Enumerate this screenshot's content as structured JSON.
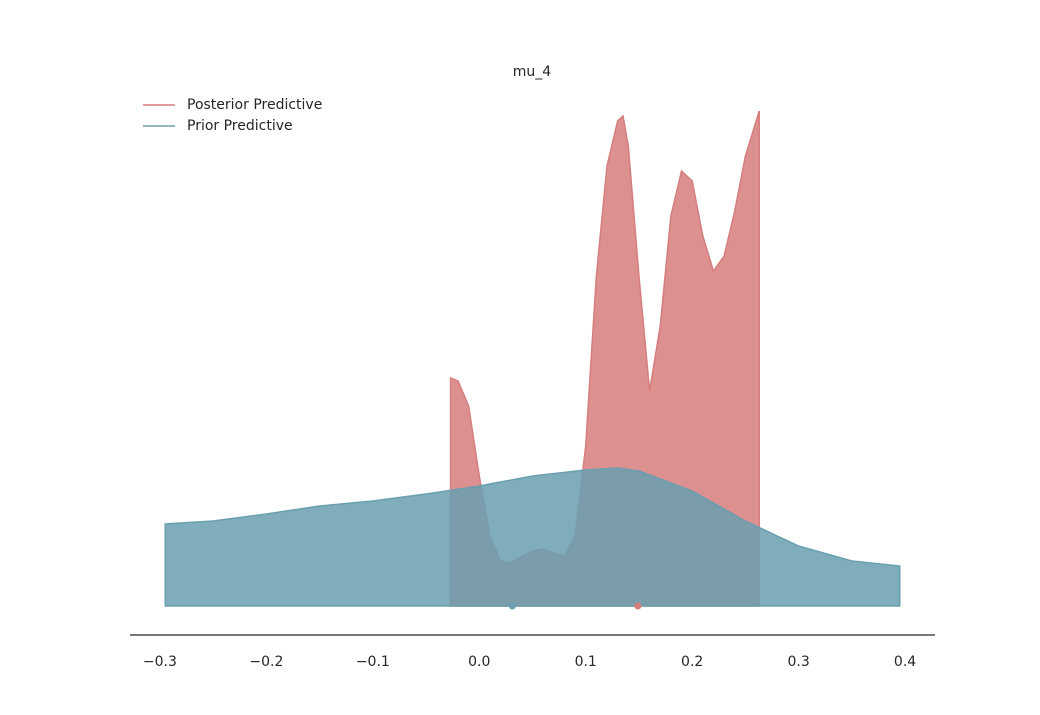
{
  "chart_data": {
    "type": "density",
    "title": "mu_4",
    "xlim": [
      -0.33,
      0.43
    ],
    "ylim": [
      0,
      5.2
    ],
    "xticks": [
      {
        "value": -0.3,
        "label": "−0.3"
      },
      {
        "value": -0.2,
        "label": "−0.2"
      },
      {
        "value": -0.1,
        "label": "−0.1"
      },
      {
        "value": 0,
        "label": "0.0"
      },
      0.1,
      0.2,
      0.3,
      0.4
    ],
    "legend": "upper left",
    "series": [
      {
        "name": "Posterior Predictive",
        "color": "#d67d7d",
        "point_estimate": 0.149,
        "x": [
          -0.027,
          -0.02,
          -0.01,
          0.0,
          0.01,
          0.02,
          0.03,
          0.04,
          0.05,
          0.06,
          0.07,
          0.08,
          0.09,
          0.1,
          0.11,
          0.12,
          0.13,
          0.135,
          0.14,
          0.15,
          0.16,
          0.17,
          0.18,
          0.19,
          0.2,
          0.21,
          0.22,
          0.23,
          0.24,
          0.25,
          0.263
        ],
        "values": [
          2.28,
          2.25,
          2.0,
          1.3,
          0.7,
          0.45,
          0.43,
          0.5,
          0.55,
          0.57,
          0.53,
          0.5,
          0.7,
          1.6,
          3.3,
          4.4,
          4.85,
          4.9,
          4.6,
          3.3,
          2.15,
          2.8,
          3.9,
          4.35,
          4.25,
          3.7,
          3.35,
          3.5,
          3.95,
          4.5,
          4.95
        ]
      },
      {
        "name": "Prior Predictive",
        "color": "#6a9fb0",
        "point_estimate": 0.031,
        "x": [
          -0.295,
          -0.25,
          -0.2,
          -0.15,
          -0.1,
          -0.05,
          0.0,
          0.05,
          0.1,
          0.13,
          0.15,
          0.2,
          0.25,
          0.3,
          0.35,
          0.395
        ],
        "values": [
          0.82,
          0.85,
          0.92,
          1.0,
          1.05,
          1.12,
          1.2,
          1.3,
          1.36,
          1.38,
          1.35,
          1.15,
          0.85,
          0.6,
          0.45,
          0.4
        ]
      }
    ]
  }
}
